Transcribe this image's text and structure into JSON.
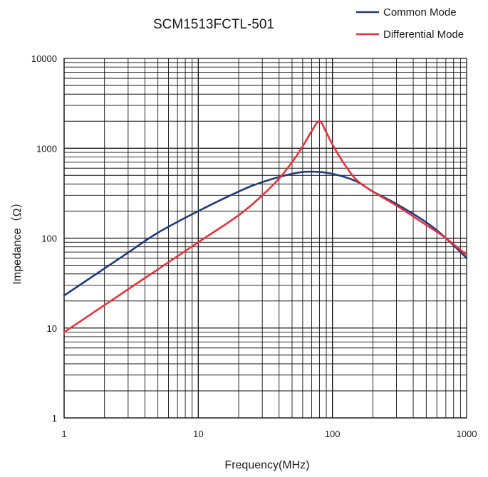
{
  "chart_data": {
    "type": "line",
    "title": "SCM1513FCTL-501",
    "xlabel": "Frequency(MHz)",
    "ylabel": "Impedance（Ω）",
    "x_scale": "log",
    "y_scale": "log",
    "xlim": [
      1,
      1000
    ],
    "ylim": [
      1,
      10000
    ],
    "grid": true,
    "legend_position": "top-right",
    "x_ticks": [
      "1",
      "10",
      "100",
      "1000"
    ],
    "y_ticks": [
      "1",
      "10",
      "100",
      "1000",
      "10000"
    ],
    "series": [
      {
        "name": "Common Mode",
        "color": "#1f3a7a",
        "x": [
          1,
          2,
          3,
          5,
          10,
          20,
          30,
          50,
          70,
          100,
          150,
          200,
          300,
          500,
          700,
          1000
        ],
        "y": [
          23,
          46,
          69,
          115,
          200,
          330,
          420,
          520,
          550,
          520,
          430,
          330,
          240,
          150,
          100,
          60
        ]
      },
      {
        "name": "Differential Mode",
        "color": "#e8323c",
        "x": [
          1,
          2,
          3,
          5,
          10,
          20,
          30,
          40,
          50,
          60,
          70,
          80,
          90,
          100,
          120,
          150,
          200,
          300,
          500,
          700,
          1000
        ],
        "y": [
          9,
          18,
          27,
          45,
          90,
          180,
          300,
          460,
          700,
          1050,
          1550,
          2000,
          1500,
          1100,
          700,
          450,
          330,
          230,
          140,
          100,
          65
        ]
      }
    ]
  }
}
